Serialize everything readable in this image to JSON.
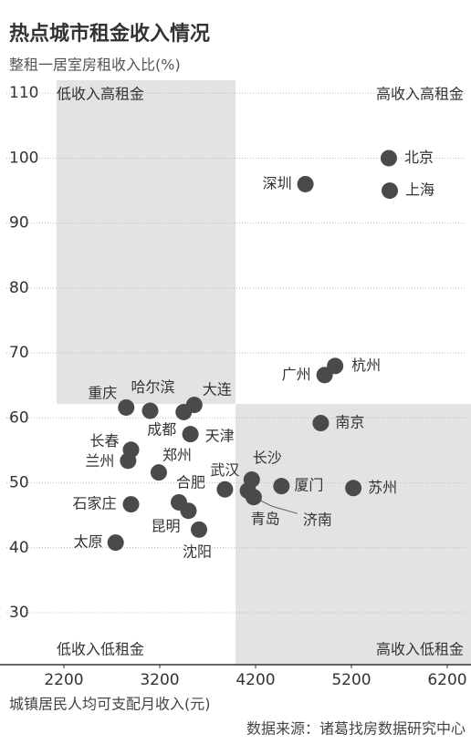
{
  "chart_data": {
    "type": "scatter",
    "title": "热点城市租金收入情况",
    "subtitle": "整租一居室房租收入比(%)",
    "x_label": "城镇居民人均可支配月收入(元)",
    "source": "数据来源：诸葛找房数据研究中心",
    "quadrant_labels": [
      "低收入高租金",
      "高收入高租金",
      "低收入低租金",
      "高收入低租金"
    ],
    "labels": [
      "北京",
      "上海",
      "深圳",
      "杭州",
      "广州",
      "南京",
      "苏州",
      "厦门",
      "长沙",
      "青岛",
      "济南",
      "武汉",
      "沈阳",
      "昆明",
      "合肥",
      "郑州",
      "天津",
      "成都",
      "大连",
      "哈尔滨",
      "重庆",
      "长春",
      "兰州",
      "石家庄",
      "太原"
    ],
    "x": [
      5590,
      5600,
      4720,
      5030,
      4920,
      4880,
      5220,
      4470,
      4160,
      4120,
      4180,
      3880,
      3610,
      3500,
      3400,
      3190,
      3520,
      3450,
      3560,
      3100,
      2850,
      2900,
      2870,
      2900,
      2740
    ],
    "values": [
      100,
      95,
      96,
      68,
      66.6,
      59.2,
      49.2,
      49.5,
      50.5,
      48.8,
      47.8,
      49,
      42.8,
      45.7,
      47,
      51.6,
      57.5,
      60.9,
      62,
      61.1,
      61.6,
      55.1,
      53.4,
      46.7,
      40.8
    ],
    "color": "#4a4a4a",
    "xlim": [
      1600,
      6400
    ],
    "ylim": [
      22,
      112
    ],
    "xticks": [
      2200,
      3200,
      4200,
      5200,
      6200
    ],
    "yticks": [
      30,
      40,
      50,
      60,
      70,
      80,
      90,
      100,
      110
    ],
    "grid": true
  }
}
